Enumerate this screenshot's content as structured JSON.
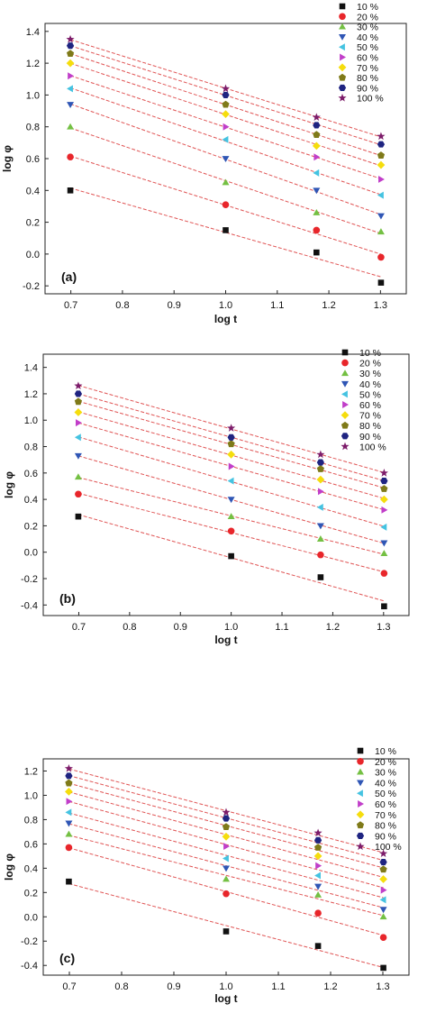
{
  "series_style": [
    {
      "marker": "square",
      "color": "#111111"
    },
    {
      "marker": "circle",
      "color": "#e8262b"
    },
    {
      "marker": "tri-up",
      "color": "#74c043"
    },
    {
      "marker": "tri-down",
      "color": "#2f56b5"
    },
    {
      "marker": "tri-left",
      "color": "#45c3e1"
    },
    {
      "marker": "tri-right",
      "color": "#c13ec9"
    },
    {
      "marker": "diamond",
      "color": "#f5dd0d"
    },
    {
      "marker": "pentagon",
      "color": "#7f7a19"
    },
    {
      "marker": "hexagon",
      "color": "#1f2481"
    },
    {
      "marker": "star",
      "color": "#7d1c6a"
    }
  ],
  "fit_line_color": "#e05555",
  "chart_data": [
    {
      "type": "scatter",
      "panel_label": "(a)",
      "xlabel": "log t",
      "ylabel": "log φ",
      "xlim": [
        0.65,
        1.35
      ],
      "ylim": [
        -0.25,
        1.45
      ],
      "xticks": [
        "0.7",
        "0.8",
        "0.9",
        "1.0",
        "1.1",
        "1.2",
        "1.3"
      ],
      "yticks": [
        "-0.2",
        "0.0",
        "0.2",
        "0.4",
        "0.6",
        "0.8",
        "1.0",
        "1.2",
        "1.4"
      ],
      "x": [
        0.699,
        1.0,
        1.176,
        1.301
      ],
      "legend": "top-right",
      "series": [
        {
          "name": "10 %",
          "values": [
            0.4,
            0.15,
            0.01,
            -0.18
          ]
        },
        {
          "name": "20 %",
          "values": [
            0.61,
            0.31,
            0.15,
            -0.02
          ]
        },
        {
          "name": "30 %",
          "values": [
            0.8,
            0.45,
            0.26,
            0.14
          ]
        },
        {
          "name": "40 %",
          "values": [
            0.94,
            0.6,
            0.4,
            0.24
          ]
        },
        {
          "name": "50 %",
          "values": [
            1.04,
            0.72,
            0.51,
            0.37
          ]
        },
        {
          "name": "60 %",
          "values": [
            1.12,
            0.8,
            0.61,
            0.47
          ]
        },
        {
          "name": "70 %",
          "values": [
            1.2,
            0.88,
            0.68,
            0.56
          ]
        },
        {
          "name": "80 %",
          "values": [
            1.26,
            0.94,
            0.75,
            0.62
          ]
        },
        {
          "name": "90 %",
          "values": [
            1.31,
            1.0,
            0.81,
            0.69
          ]
        },
        {
          "name": "100 %",
          "values": [
            1.35,
            1.04,
            0.86,
            0.74
          ]
        }
      ]
    },
    {
      "type": "scatter",
      "panel_label": "(b)",
      "xlabel": "log t",
      "ylabel": "log φ",
      "xlim": [
        0.63,
        1.35
      ],
      "ylim": [
        -0.48,
        1.5
      ],
      "xticks": [
        "0.7",
        "0.8",
        "0.9",
        "1.0",
        "1.1",
        "1.2",
        "1.3"
      ],
      "yticks": [
        "-0.4",
        "-0.2",
        "0.0",
        "0.2",
        "0.4",
        "0.6",
        "0.8",
        "1.0",
        "1.2",
        "1.4"
      ],
      "x": [
        0.699,
        1.0,
        1.176,
        1.301
      ],
      "legend": "top-right",
      "series": [
        {
          "name": "10 %",
          "values": [
            0.27,
            -0.03,
            -0.19,
            -0.41
          ]
        },
        {
          "name": "20 %",
          "values": [
            0.44,
            0.16,
            -0.02,
            -0.16
          ]
        },
        {
          "name": "30 %",
          "values": [
            0.57,
            0.27,
            0.1,
            -0.01
          ]
        },
        {
          "name": "40 %",
          "values": [
            0.73,
            0.4,
            0.2,
            0.07
          ]
        },
        {
          "name": "50 %",
          "values": [
            0.87,
            0.54,
            0.34,
            0.19
          ]
        },
        {
          "name": "60 %",
          "values": [
            0.98,
            0.65,
            0.46,
            0.32
          ]
        },
        {
          "name": "70 %",
          "values": [
            1.06,
            0.74,
            0.55,
            0.4
          ]
        },
        {
          "name": "80 %",
          "values": [
            1.14,
            0.82,
            0.63,
            0.48
          ]
        },
        {
          "name": "90 %",
          "values": [
            1.2,
            0.87,
            0.68,
            0.54
          ]
        },
        {
          "name": "100 %",
          "values": [
            1.26,
            0.94,
            0.74,
            0.6
          ]
        }
      ]
    },
    {
      "type": "scatter",
      "panel_label": "(c)",
      "xlabel": "log t",
      "ylabel": "log φ",
      "xlim": [
        0.65,
        1.35
      ],
      "ylim": [
        -0.48,
        1.3
      ],
      "xticks": [
        "0.7",
        "0.8",
        "0.9",
        "1.0",
        "1.1",
        "1.2",
        "1.3"
      ],
      "yticks": [
        "-0.4",
        "-0.2",
        "0.0",
        "0.2",
        "0.4",
        "0.6",
        "0.8",
        "1.0",
        "1.2"
      ],
      "x": [
        0.699,
        1.0,
        1.176,
        1.301
      ],
      "legend": "top-right",
      "series": [
        {
          "name": "10 %",
          "values": [
            0.29,
            -0.12,
            -0.24,
            -0.42
          ]
        },
        {
          "name": "20 %",
          "values": [
            0.57,
            0.19,
            0.03,
            -0.17
          ]
        },
        {
          "name": "30 %",
          "values": [
            0.68,
            0.31,
            0.18,
            0.0
          ]
        },
        {
          "name": "40 %",
          "values": [
            0.77,
            0.4,
            0.25,
            0.06
          ]
        },
        {
          "name": "50 %",
          "values": [
            0.86,
            0.48,
            0.34,
            0.14
          ]
        },
        {
          "name": "60 %",
          "values": [
            0.95,
            0.58,
            0.42,
            0.22
          ]
        },
        {
          "name": "70 %",
          "values": [
            1.03,
            0.66,
            0.5,
            0.31
          ]
        },
        {
          "name": "80 %",
          "values": [
            1.1,
            0.74,
            0.57,
            0.39
          ]
        },
        {
          "name": "90 %",
          "values": [
            1.16,
            0.81,
            0.63,
            0.45
          ]
        },
        {
          "name": "100 %",
          "values": [
            1.22,
            0.86,
            0.69,
            0.52
          ]
        }
      ]
    }
  ]
}
